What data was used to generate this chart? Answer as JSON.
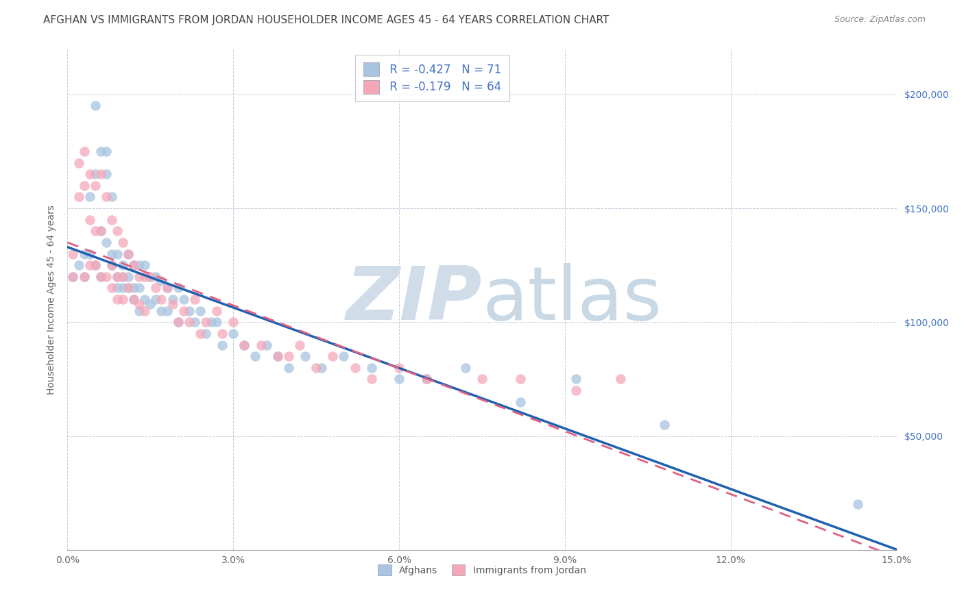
{
  "title": "AFGHAN VS IMMIGRANTS FROM JORDAN HOUSEHOLDER INCOME AGES 45 - 64 YEARS CORRELATION CHART",
  "source": "Source: ZipAtlas.com",
  "ylabel": "Householder Income Ages 45 - 64 years",
  "xlim": [
    0.0,
    0.15
  ],
  "ylim": [
    0,
    220000
  ],
  "ytick_labels": [
    "$50,000",
    "$100,000",
    "$150,000",
    "$200,000"
  ],
  "ytick_values": [
    50000,
    100000,
    150000,
    200000
  ],
  "legend_label1": "Afghans",
  "legend_label2": "Immigrants from Jordan",
  "r1": "-0.427",
  "n1": "71",
  "r2": "-0.179",
  "n2": "64",
  "color_afghan": "#a8c4e0",
  "color_jordan": "#f4a7b9",
  "color_line_afghan": "#2060b0",
  "color_line_jordan": "#e06080",
  "background_color": "#ffffff",
  "grid_color": "#cccccc",
  "watermark_zip": "ZIP",
  "watermark_atlas": "atlas",
  "afghan_x": [
    0.001,
    0.002,
    0.003,
    0.003,
    0.004,
    0.004,
    0.005,
    0.005,
    0.005,
    0.006,
    0.006,
    0.006,
    0.007,
    0.007,
    0.007,
    0.008,
    0.008,
    0.008,
    0.009,
    0.009,
    0.009,
    0.01,
    0.01,
    0.01,
    0.011,
    0.011,
    0.011,
    0.012,
    0.012,
    0.012,
    0.013,
    0.013,
    0.013,
    0.014,
    0.014,
    0.015,
    0.015,
    0.016,
    0.016,
    0.017,
    0.017,
    0.018,
    0.018,
    0.019,
    0.02,
    0.02,
    0.021,
    0.022,
    0.023,
    0.024,
    0.025,
    0.026,
    0.027,
    0.028,
    0.03,
    0.032,
    0.034,
    0.036,
    0.038,
    0.04,
    0.043,
    0.046,
    0.05,
    0.055,
    0.06,
    0.065,
    0.072,
    0.082,
    0.092,
    0.108,
    0.143
  ],
  "afghan_y": [
    120000,
    125000,
    130000,
    120000,
    155000,
    130000,
    195000,
    165000,
    125000,
    175000,
    140000,
    120000,
    165000,
    175000,
    135000,
    125000,
    155000,
    130000,
    120000,
    115000,
    130000,
    120000,
    125000,
    115000,
    130000,
    120000,
    115000,
    125000,
    115000,
    110000,
    125000,
    115000,
    105000,
    125000,
    110000,
    120000,
    108000,
    120000,
    110000,
    118000,
    105000,
    115000,
    105000,
    110000,
    115000,
    100000,
    110000,
    105000,
    100000,
    105000,
    95000,
    100000,
    100000,
    90000,
    95000,
    90000,
    85000,
    90000,
    85000,
    80000,
    85000,
    80000,
    85000,
    80000,
    75000,
    75000,
    80000,
    65000,
    75000,
    55000,
    20000
  ],
  "jordan_x": [
    0.001,
    0.001,
    0.002,
    0.002,
    0.003,
    0.003,
    0.003,
    0.004,
    0.004,
    0.004,
    0.005,
    0.005,
    0.005,
    0.006,
    0.006,
    0.006,
    0.007,
    0.007,
    0.008,
    0.008,
    0.008,
    0.009,
    0.009,
    0.009,
    0.01,
    0.01,
    0.01,
    0.011,
    0.011,
    0.012,
    0.012,
    0.013,
    0.013,
    0.014,
    0.014,
    0.015,
    0.016,
    0.017,
    0.018,
    0.019,
    0.02,
    0.021,
    0.022,
    0.023,
    0.024,
    0.025,
    0.027,
    0.028,
    0.03,
    0.032,
    0.035,
    0.038,
    0.04,
    0.042,
    0.045,
    0.048,
    0.052,
    0.055,
    0.06,
    0.065,
    0.075,
    0.082,
    0.092,
    0.1
  ],
  "jordan_y": [
    130000,
    120000,
    170000,
    155000,
    175000,
    160000,
    120000,
    165000,
    145000,
    125000,
    160000,
    140000,
    125000,
    165000,
    140000,
    120000,
    155000,
    120000,
    145000,
    125000,
    115000,
    140000,
    120000,
    110000,
    135000,
    120000,
    110000,
    130000,
    115000,
    125000,
    110000,
    120000,
    108000,
    120000,
    105000,
    120000,
    115000,
    110000,
    115000,
    108000,
    100000,
    105000,
    100000,
    110000,
    95000,
    100000,
    105000,
    95000,
    100000,
    90000,
    90000,
    85000,
    85000,
    90000,
    80000,
    85000,
    80000,
    75000,
    80000,
    75000,
    75000,
    75000,
    70000,
    75000
  ]
}
